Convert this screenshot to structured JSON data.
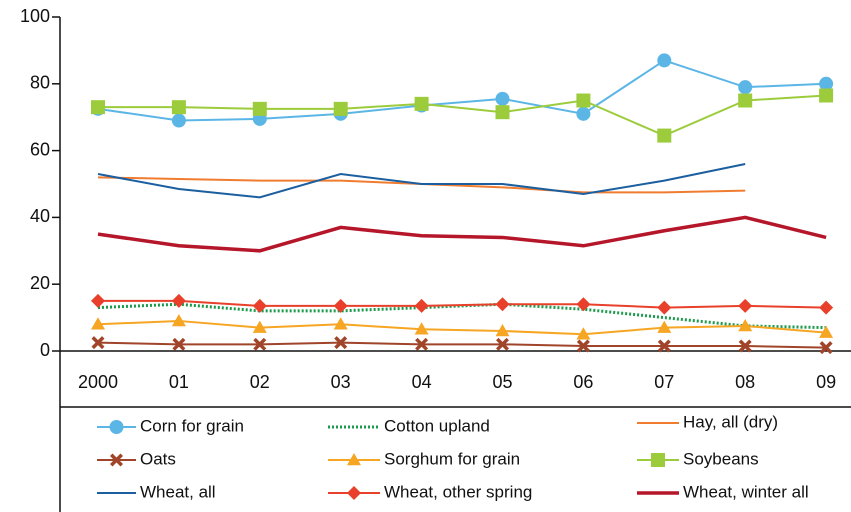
{
  "chart_data": {
    "type": "line",
    "categories": [
      "2000",
      "01",
      "02",
      "03",
      "04",
      "05",
      "06",
      "07",
      "08",
      "09"
    ],
    "ylim": [
      0,
      100
    ],
    "yticks": [
      0,
      20,
      40,
      60,
      80,
      100
    ],
    "series": [
      {
        "name": "Corn for grain",
        "color": "#5bb6e6",
        "marker": "circle",
        "values": [
          72.5,
          69,
          69.5,
          71,
          73.5,
          75.5,
          71,
          87,
          79,
          80
        ]
      },
      {
        "name": "Cotton upland",
        "color": "#1a9a4a",
        "dash": "dotted",
        "values": [
          13,
          14,
          12,
          12,
          13,
          14,
          12.5,
          10,
          7.5,
          7
        ]
      },
      {
        "name": "Hay, all (dry)",
        "color": "#f07c30",
        "values": [
          52,
          51.5,
          51,
          51,
          50,
          49,
          47.5,
          47.5,
          48,
          null
        ]
      },
      {
        "name": "Oats",
        "color": "#a0442a",
        "marker": "x",
        "values": [
          2.5,
          2,
          2,
          2.5,
          2,
          2,
          1.5,
          1.5,
          1.5,
          1
        ]
      },
      {
        "name": "Sorghum for grain",
        "color": "#f6a623",
        "marker": "triangle",
        "values": [
          8,
          9,
          7,
          8,
          6.5,
          6,
          5,
          7,
          7.5,
          5.5
        ]
      },
      {
        "name": "Soybeans",
        "color": "#9ccc3c",
        "marker": "square",
        "values": [
          73,
          73,
          72.5,
          72.5,
          74,
          71.5,
          75,
          64.5,
          75,
          76.5
        ]
      },
      {
        "name": "Wheat, all",
        "color": "#1b5fa0",
        "values": [
          53,
          48.5,
          46,
          53,
          50,
          50,
          47,
          51,
          56,
          null
        ]
      },
      {
        "name": "Wheat, other spring",
        "color": "#e8402a",
        "marker": "diamond",
        "values": [
          15,
          15,
          13.5,
          13.5,
          13.5,
          14,
          14,
          13,
          13.5,
          13
        ]
      },
      {
        "name": "Wheat, winter all",
        "color": "#b5162a",
        "width": 3.5,
        "values": [
          35,
          31.5,
          30,
          37,
          34.5,
          34,
          31.5,
          36,
          40,
          34
        ]
      }
    ]
  }
}
